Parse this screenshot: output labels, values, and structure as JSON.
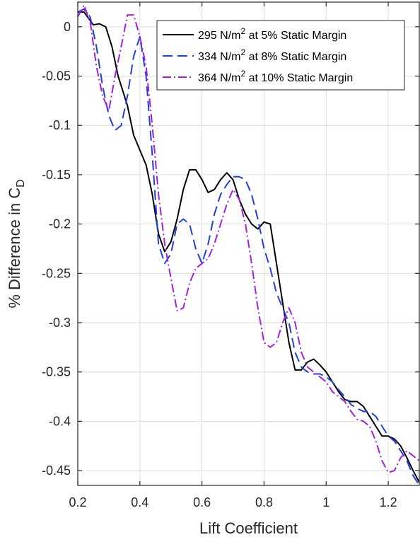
{
  "chart_data": {
    "type": "line",
    "xlabel": "Lift Coefficient",
    "ylabel_main": "% Difference in C",
    "ylabel_sub": "D",
    "xlim": [
      0.2,
      1.3
    ],
    "ylim": [
      -0.465,
      0.025
    ],
    "xticks": [
      0.2,
      0.4,
      0.6,
      0.8,
      1.0,
      1.2
    ],
    "xtick_labels": [
      "0.2",
      "0.4",
      "0.6",
      "0.8",
      "1",
      "1.2"
    ],
    "yticks": [
      0,
      -0.05,
      -0.1,
      -0.15,
      -0.2,
      -0.25,
      -0.3,
      -0.35,
      -0.4,
      -0.45
    ],
    "ytick_labels": [
      "0",
      "-0.05",
      "-0.1",
      "-0.15",
      "-0.2",
      "-0.25",
      "-0.3",
      "-0.35",
      "-0.4",
      "-0.45"
    ],
    "grid": true,
    "legend_position": "top-right",
    "series": [
      {
        "legend_parts": [
          "295 N/m",
          "2",
          " at 5% Static Margin"
        ],
        "color": "#000000",
        "dash": "",
        "x": [
          0.2,
          0.22,
          0.25,
          0.27,
          0.29,
          0.31,
          0.33,
          0.36,
          0.38,
          0.4,
          0.42,
          0.44,
          0.46,
          0.48,
          0.5,
          0.52,
          0.54,
          0.56,
          0.58,
          0.6,
          0.62,
          0.64,
          0.66,
          0.68,
          0.7,
          0.72,
          0.74,
          0.76,
          0.78,
          0.8,
          0.82,
          0.84,
          0.86,
          0.88,
          0.9,
          0.92,
          0.94,
          0.96,
          0.98,
          1.0,
          1.02,
          1.04,
          1.06,
          1.08,
          1.1,
          1.12,
          1.14,
          1.16,
          1.18,
          1.2,
          1.22,
          1.24,
          1.26,
          1.28,
          1.3
        ],
        "y": [
          0.015,
          0.015,
          0.002,
          0.003,
          0.0,
          -0.02,
          -0.05,
          -0.08,
          -0.11,
          -0.125,
          -0.14,
          -0.17,
          -0.21,
          -0.228,
          -0.218,
          -0.195,
          -0.165,
          -0.145,
          -0.145,
          -0.155,
          -0.168,
          -0.165,
          -0.155,
          -0.148,
          -0.155,
          -0.175,
          -0.19,
          -0.2,
          -0.205,
          -0.198,
          -0.2,
          -0.24,
          -0.28,
          -0.32,
          -0.348,
          -0.348,
          -0.34,
          -0.337,
          -0.343,
          -0.35,
          -0.36,
          -0.37,
          -0.378,
          -0.38,
          -0.38,
          -0.385,
          -0.395,
          -0.405,
          -0.415,
          -0.415,
          -0.418,
          -0.425,
          -0.437,
          -0.45,
          -0.462
        ]
      },
      {
        "legend_parts": [
          "334 N/m",
          "2",
          " at 8% Static Margin"
        ],
        "color": "#1f3fe0",
        "dash": "14 7",
        "x": [
          0.2,
          0.22,
          0.24,
          0.26,
          0.28,
          0.3,
          0.32,
          0.34,
          0.36,
          0.38,
          0.4,
          0.42,
          0.44,
          0.46,
          0.48,
          0.5,
          0.52,
          0.54,
          0.56,
          0.58,
          0.6,
          0.62,
          0.64,
          0.66,
          0.68,
          0.7,
          0.72,
          0.74,
          0.76,
          0.78,
          0.8,
          0.82,
          0.84,
          0.86,
          0.88,
          0.9,
          0.92,
          0.94,
          0.96,
          0.98,
          1.0,
          1.02,
          1.04,
          1.06,
          1.08,
          1.1,
          1.12,
          1.14,
          1.16,
          1.18,
          1.2,
          1.22,
          1.24,
          1.26,
          1.28,
          1.3
        ],
        "y": [
          0.015,
          0.018,
          0.01,
          -0.02,
          -0.06,
          -0.09,
          -0.105,
          -0.1,
          -0.07,
          -0.03,
          -0.01,
          -0.05,
          -0.13,
          -0.22,
          -0.24,
          -0.23,
          -0.2,
          -0.195,
          -0.2,
          -0.225,
          -0.24,
          -0.22,
          -0.19,
          -0.17,
          -0.16,
          -0.152,
          -0.152,
          -0.155,
          -0.17,
          -0.195,
          -0.225,
          -0.245,
          -0.27,
          -0.285,
          -0.3,
          -0.33,
          -0.345,
          -0.35,
          -0.352,
          -0.352,
          -0.355,
          -0.36,
          -0.368,
          -0.375,
          -0.383,
          -0.387,
          -0.39,
          -0.39,
          -0.395,
          -0.405,
          -0.415,
          -0.42,
          -0.43,
          -0.44,
          -0.455,
          -0.465
        ]
      },
      {
        "legend_parts": [
          "364 N/m",
          "2",
          " at 10% Static Margin"
        ],
        "color": "#a31fe0",
        "dash": "12 4 2 4",
        "x": [
          0.2,
          0.22,
          0.24,
          0.26,
          0.28,
          0.3,
          0.32,
          0.34,
          0.36,
          0.38,
          0.4,
          0.42,
          0.44,
          0.46,
          0.48,
          0.5,
          0.52,
          0.54,
          0.56,
          0.58,
          0.6,
          0.62,
          0.64,
          0.66,
          0.68,
          0.7,
          0.72,
          0.74,
          0.76,
          0.78,
          0.8,
          0.82,
          0.84,
          0.86,
          0.88,
          0.9,
          0.92,
          0.94,
          0.96,
          0.98,
          1.0,
          1.02,
          1.04,
          1.06,
          1.08,
          1.1,
          1.12,
          1.14,
          1.16,
          1.18,
          1.2,
          1.22,
          1.24,
          1.26,
          1.28,
          1.3
        ],
        "y": [
          0.01,
          0.022,
          0.005,
          -0.04,
          -0.07,
          -0.085,
          -0.05,
          -0.02,
          0.012,
          0.012,
          -0.01,
          -0.04,
          -0.1,
          -0.17,
          -0.22,
          -0.255,
          -0.288,
          -0.285,
          -0.26,
          -0.245,
          -0.24,
          -0.235,
          -0.22,
          -0.2,
          -0.18,
          -0.165,
          -0.175,
          -0.2,
          -0.24,
          -0.285,
          -0.32,
          -0.325,
          -0.32,
          -0.3,
          -0.285,
          -0.3,
          -0.33,
          -0.345,
          -0.35,
          -0.355,
          -0.36,
          -0.37,
          -0.375,
          -0.38,
          -0.39,
          -0.398,
          -0.4,
          -0.405,
          -0.42,
          -0.44,
          -0.452,
          -0.45,
          -0.437,
          -0.43,
          -0.435,
          -0.44
        ]
      }
    ]
  }
}
